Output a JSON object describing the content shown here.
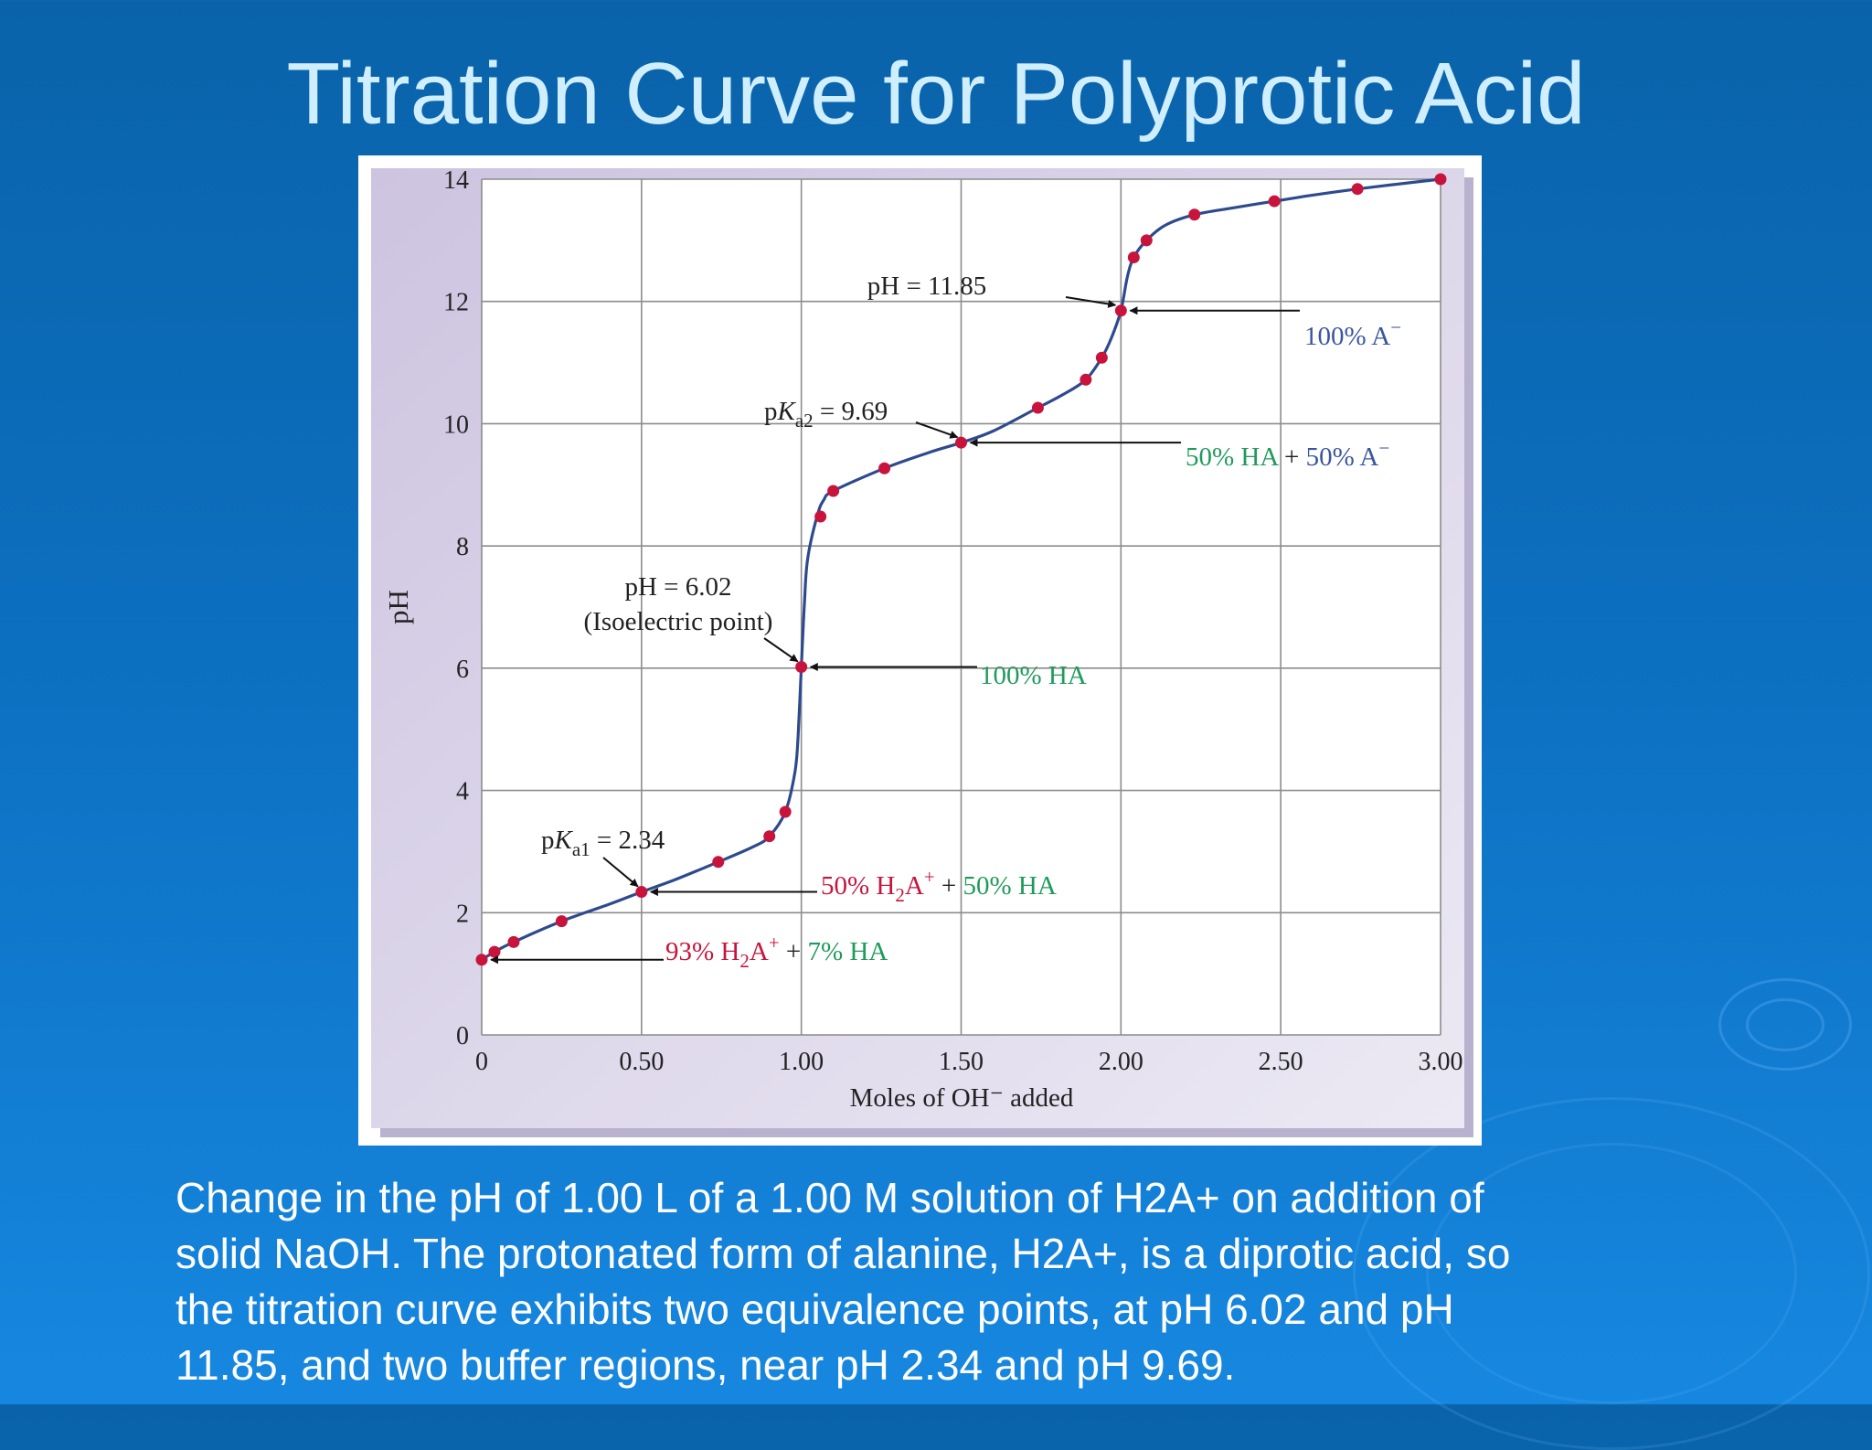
{
  "slide": {
    "title": "Titration Curve for Polyprotic Acid",
    "caption_lines": [
      "Change in the pH of 1.00 L of a 1.00 M solution of H2A+ on addition of",
      "solid NaOH. The protonated form of alanine, H2A+, is a diprotic acid, so",
      "the titration curve exhibits two equivalence points, at pH 6.02 and pH",
      "11.85, and two buffer regions, near pH 2.34 and pH 9.69."
    ]
  },
  "colors": {
    "background": "#0c6fbf",
    "title": "#cfefff",
    "curve": "#2e4a8f",
    "points": "#c8143c",
    "red_label": "#c8143c",
    "green_label": "#1e9b5a",
    "blue_label": "#3a55a0",
    "panel": "#d9d3e8"
  },
  "chart_data": {
    "type": "line",
    "title": "",
    "xlabel": "Moles of OH⁻ added",
    "ylabel": "pH",
    "xlim": [
      0,
      3.0
    ],
    "ylim": [
      0,
      14
    ],
    "grid": true,
    "x_ticks": [
      {
        "value": 0,
        "label": "0"
      },
      {
        "value": 0.5,
        "label": "0.50"
      },
      {
        "value": 1.0,
        "label": "1.00"
      },
      {
        "value": 1.5,
        "label": "1.50"
      },
      {
        "value": 2.0,
        "label": "2.00"
      },
      {
        "value": 2.5,
        "label": "2.50"
      },
      {
        "value": 3.0,
        "label": "3.00"
      }
    ],
    "y_ticks": [
      {
        "value": 0,
        "label": "0"
      },
      {
        "value": 2,
        "label": "2"
      },
      {
        "value": 4,
        "label": "4"
      },
      {
        "value": 6,
        "label": "6"
      },
      {
        "value": 8,
        "label": "8"
      },
      {
        "value": 10,
        "label": "10"
      },
      {
        "value": 12,
        "label": "12"
      },
      {
        "value": 14,
        "label": "14"
      }
    ],
    "curve": [
      [
        0,
        1.23
      ],
      [
        0.04,
        1.36
      ],
      [
        0.1,
        1.52
      ],
      [
        0.25,
        1.86
      ],
      [
        0.4,
        2.14
      ],
      [
        0.5,
        2.34
      ],
      [
        0.6,
        2.53
      ],
      [
        0.74,
        2.83
      ],
      [
        0.85,
        3.08
      ],
      [
        0.9,
        3.25
      ],
      [
        0.95,
        3.65
      ],
      [
        0.98,
        4.3
      ],
      [
        0.99,
        4.9
      ],
      [
        1.0,
        6.02
      ],
      [
        1.01,
        7.1
      ],
      [
        1.02,
        7.8
      ],
      [
        1.05,
        8.5
      ],
      [
        1.07,
        8.75
      ],
      [
        1.1,
        8.9
      ],
      [
        1.26,
        9.27
      ],
      [
        1.4,
        9.53
      ],
      [
        1.5,
        9.69
      ],
      [
        1.6,
        9.88
      ],
      [
        1.74,
        10.26
      ],
      [
        1.82,
        10.48
      ],
      [
        1.89,
        10.72
      ],
      [
        1.94,
        11.08
      ],
      [
        1.97,
        11.4
      ],
      [
        2.0,
        11.85
      ],
      [
        2.02,
        12.4
      ],
      [
        2.04,
        12.72
      ],
      [
        2.08,
        13.0
      ],
      [
        2.14,
        13.25
      ],
      [
        2.23,
        13.42
      ],
      [
        2.35,
        13.53
      ],
      [
        2.48,
        13.64
      ],
      [
        2.6,
        13.74
      ],
      [
        2.74,
        13.84
      ],
      [
        2.85,
        13.91
      ],
      [
        3.0,
        14.0
      ]
    ],
    "points": [
      [
        0,
        1.23
      ],
      [
        0.04,
        1.36
      ],
      [
        0.1,
        1.52
      ],
      [
        0.25,
        1.86
      ],
      [
        0.5,
        2.34
      ],
      [
        0.74,
        2.83
      ],
      [
        0.9,
        3.25
      ],
      [
        0.95,
        3.65
      ],
      [
        1.0,
        6.02
      ],
      [
        1.06,
        8.48
      ],
      [
        1.1,
        8.9
      ],
      [
        1.26,
        9.27
      ],
      [
        1.5,
        9.69
      ],
      [
        1.74,
        10.26
      ],
      [
        1.89,
        10.72
      ],
      [
        1.94,
        11.08
      ],
      [
        2.0,
        11.85
      ],
      [
        2.04,
        12.72
      ],
      [
        2.08,
        13.0
      ],
      [
        2.23,
        13.42
      ],
      [
        2.48,
        13.64
      ],
      [
        2.74,
        13.84
      ],
      [
        3.0,
        14.0
      ]
    ],
    "annotations": {
      "pka1": {
        "prefix": "p",
        "italic": "K",
        "sub": "a1",
        "suffix": " = 2.34",
        "x": 0.5,
        "y": 2.34
      },
      "pka2": {
        "prefix": "p",
        "italic": "K",
        "sub": "a2",
        "suffix": " = 9.69",
        "x": 1.5,
        "y": 9.69
      },
      "ph602": {
        "line1": "pH = 6.02",
        "line2": "(Isoelectric point)",
        "x": 1.0,
        "y": 6.02
      },
      "ph1185": {
        "text": "pH = 11.85",
        "x": 2.0,
        "y": 11.85
      },
      "mix_start": {
        "red": "93% H",
        "red_sub": "2",
        "red_tail": "A",
        "red_sup": "+",
        "join": " + ",
        "green": "7% HA"
      },
      "mix_pka1": {
        "red": "50% H",
        "red_sub": "2",
        "red_tail": "A",
        "red_sup": "+",
        "join": " + ",
        "green": "50% HA"
      },
      "mix_iso": {
        "green": "100% HA"
      },
      "mix_pka2": {
        "green": "50% HA",
        "join": " + ",
        "blue": "50% A",
        "blue_sup": "−"
      },
      "mix_end": {
        "blue": "100% A",
        "blue_sup": "−"
      }
    }
  }
}
